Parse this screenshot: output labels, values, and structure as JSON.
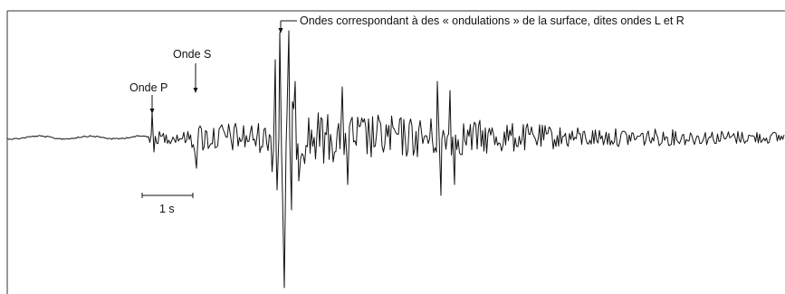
{
  "labels": {
    "onde_p": "Onde P",
    "onde_s": "Onde S",
    "ondes_lr": "Ondes correspondant à des « ondulations » de la surface, dites ondes L et R",
    "scale": "1 s"
  },
  "colors": {
    "trace": "#111111",
    "frame": "#333333",
    "background": "#ffffff"
  }
}
